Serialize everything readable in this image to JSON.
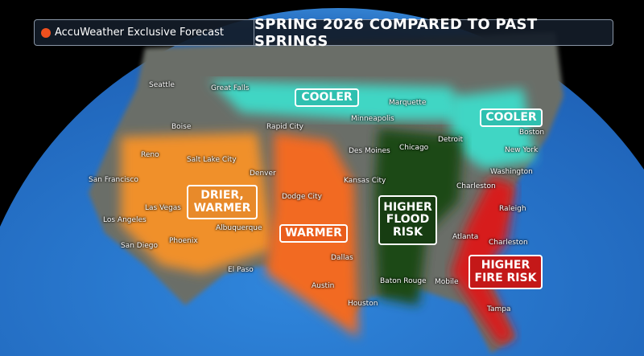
{
  "header": {
    "brand": "AccuWeather Exclusive Forecast",
    "title": "SPRING 2026 COMPARED TO PAST SPRINGS"
  },
  "colors": {
    "cooler": "#3fd6c4",
    "warmer": "#f26a22",
    "drier_warmer": "#f0902a",
    "flood": "#1e4a17",
    "fire": "#d71f1f",
    "ocean": "#2a78d0",
    "land": "#6b6e68"
  },
  "callouts": {
    "cooler_north": "COOLER",
    "cooler_northeast": "COOLER",
    "drier_warmer": [
      "DRIER,",
      "WARMER"
    ],
    "warmer": "WARMER",
    "flood": [
      "HIGHER",
      "FLOOD",
      "RISK"
    ],
    "fire": [
      "HIGHER",
      "FIRE RISK"
    ]
  },
  "cities": {
    "seattle": "Seattle",
    "great_falls": "Great Falls",
    "boise": "Boise",
    "rapid_city": "Rapid City",
    "reno": "Reno",
    "salt_lake_city": "Salt Lake City",
    "denver": "Denver",
    "san_francisco": "San Francisco",
    "las_vegas": "Las Vegas",
    "dodge_city": "Dodge City",
    "albuquerque": "Albuquerque",
    "los_angeles": "Los Angeles",
    "phoenix": "Phoenix",
    "san_diego": "San Diego",
    "el_paso": "El Paso",
    "dallas": "Dallas",
    "austin": "Austin",
    "houston": "Houston",
    "minneapolis": "Minneapolis",
    "marquette": "Marquette",
    "des_moines": "Des Moines",
    "chicago": "Chicago",
    "detroit": "Detroit",
    "kansas_city": "Kansas City",
    "charleston_wv": "Charleston",
    "washington": "Washington",
    "boston": "Boston",
    "new_york": "New York",
    "raleigh": "Raleigh",
    "atlanta": "Atlanta",
    "charleston_sc": "Charleston",
    "baton_rouge": "Baton Rouge",
    "mobile": "Mobile",
    "tampa": "Tampa"
  }
}
